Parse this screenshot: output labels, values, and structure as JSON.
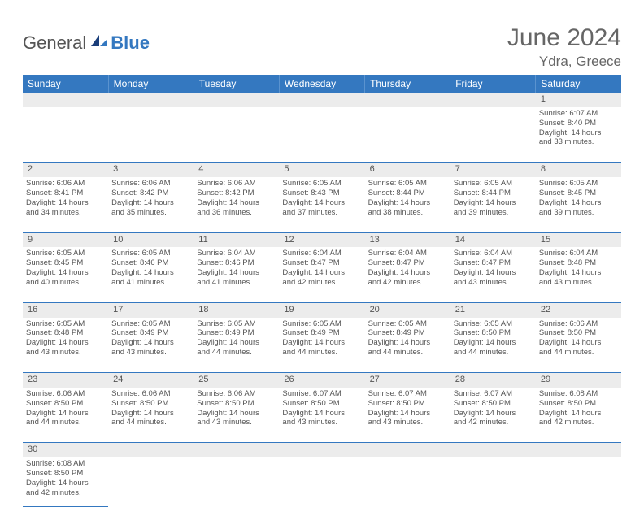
{
  "brand": {
    "general": "General",
    "blue": "Blue"
  },
  "title": "June 2024",
  "location": "Ydra, Greece",
  "colors": {
    "header_bg": "#3478c0",
    "header_text": "#ffffff",
    "daynum_bg": "#ececec",
    "border": "#3478c0",
    "text": "#555555",
    "brand_blue": "#3478c0",
    "brand_gray": "#555555"
  },
  "weekdays": [
    "Sunday",
    "Monday",
    "Tuesday",
    "Wednesday",
    "Thursday",
    "Friday",
    "Saturday"
  ],
  "weeks": [
    {
      "nums": [
        "",
        "",
        "",
        "",
        "",
        "",
        "1"
      ],
      "cells": [
        null,
        null,
        null,
        null,
        null,
        null,
        {
          "sr": "Sunrise: 6:07 AM",
          "ss": "Sunset: 8:40 PM",
          "d1": "Daylight: 14 hours",
          "d2": "and 33 minutes."
        }
      ]
    },
    {
      "nums": [
        "2",
        "3",
        "4",
        "5",
        "6",
        "7",
        "8"
      ],
      "cells": [
        {
          "sr": "Sunrise: 6:06 AM",
          "ss": "Sunset: 8:41 PM",
          "d1": "Daylight: 14 hours",
          "d2": "and 34 minutes."
        },
        {
          "sr": "Sunrise: 6:06 AM",
          "ss": "Sunset: 8:42 PM",
          "d1": "Daylight: 14 hours",
          "d2": "and 35 minutes."
        },
        {
          "sr": "Sunrise: 6:06 AM",
          "ss": "Sunset: 8:42 PM",
          "d1": "Daylight: 14 hours",
          "d2": "and 36 minutes."
        },
        {
          "sr": "Sunrise: 6:05 AM",
          "ss": "Sunset: 8:43 PM",
          "d1": "Daylight: 14 hours",
          "d2": "and 37 minutes."
        },
        {
          "sr": "Sunrise: 6:05 AM",
          "ss": "Sunset: 8:44 PM",
          "d1": "Daylight: 14 hours",
          "d2": "and 38 minutes."
        },
        {
          "sr": "Sunrise: 6:05 AM",
          "ss": "Sunset: 8:44 PM",
          "d1": "Daylight: 14 hours",
          "d2": "and 39 minutes."
        },
        {
          "sr": "Sunrise: 6:05 AM",
          "ss": "Sunset: 8:45 PM",
          "d1": "Daylight: 14 hours",
          "d2": "and 39 minutes."
        }
      ]
    },
    {
      "nums": [
        "9",
        "10",
        "11",
        "12",
        "13",
        "14",
        "15"
      ],
      "cells": [
        {
          "sr": "Sunrise: 6:05 AM",
          "ss": "Sunset: 8:45 PM",
          "d1": "Daylight: 14 hours",
          "d2": "and 40 minutes."
        },
        {
          "sr": "Sunrise: 6:05 AM",
          "ss": "Sunset: 8:46 PM",
          "d1": "Daylight: 14 hours",
          "d2": "and 41 minutes."
        },
        {
          "sr": "Sunrise: 6:04 AM",
          "ss": "Sunset: 8:46 PM",
          "d1": "Daylight: 14 hours",
          "d2": "and 41 minutes."
        },
        {
          "sr": "Sunrise: 6:04 AM",
          "ss": "Sunset: 8:47 PM",
          "d1": "Daylight: 14 hours",
          "d2": "and 42 minutes."
        },
        {
          "sr": "Sunrise: 6:04 AM",
          "ss": "Sunset: 8:47 PM",
          "d1": "Daylight: 14 hours",
          "d2": "and 42 minutes."
        },
        {
          "sr": "Sunrise: 6:04 AM",
          "ss": "Sunset: 8:47 PM",
          "d1": "Daylight: 14 hours",
          "d2": "and 43 minutes."
        },
        {
          "sr": "Sunrise: 6:04 AM",
          "ss": "Sunset: 8:48 PM",
          "d1": "Daylight: 14 hours",
          "d2": "and 43 minutes."
        }
      ]
    },
    {
      "nums": [
        "16",
        "17",
        "18",
        "19",
        "20",
        "21",
        "22"
      ],
      "cells": [
        {
          "sr": "Sunrise: 6:05 AM",
          "ss": "Sunset: 8:48 PM",
          "d1": "Daylight: 14 hours",
          "d2": "and 43 minutes."
        },
        {
          "sr": "Sunrise: 6:05 AM",
          "ss": "Sunset: 8:49 PM",
          "d1": "Daylight: 14 hours",
          "d2": "and 43 minutes."
        },
        {
          "sr": "Sunrise: 6:05 AM",
          "ss": "Sunset: 8:49 PM",
          "d1": "Daylight: 14 hours",
          "d2": "and 44 minutes."
        },
        {
          "sr": "Sunrise: 6:05 AM",
          "ss": "Sunset: 8:49 PM",
          "d1": "Daylight: 14 hours",
          "d2": "and 44 minutes."
        },
        {
          "sr": "Sunrise: 6:05 AM",
          "ss": "Sunset: 8:49 PM",
          "d1": "Daylight: 14 hours",
          "d2": "and 44 minutes."
        },
        {
          "sr": "Sunrise: 6:05 AM",
          "ss": "Sunset: 8:50 PM",
          "d1": "Daylight: 14 hours",
          "d2": "and 44 minutes."
        },
        {
          "sr": "Sunrise: 6:06 AM",
          "ss": "Sunset: 8:50 PM",
          "d1": "Daylight: 14 hours",
          "d2": "and 44 minutes."
        }
      ]
    },
    {
      "nums": [
        "23",
        "24",
        "25",
        "26",
        "27",
        "28",
        "29"
      ],
      "cells": [
        {
          "sr": "Sunrise: 6:06 AM",
          "ss": "Sunset: 8:50 PM",
          "d1": "Daylight: 14 hours",
          "d2": "and 44 minutes."
        },
        {
          "sr": "Sunrise: 6:06 AM",
          "ss": "Sunset: 8:50 PM",
          "d1": "Daylight: 14 hours",
          "d2": "and 44 minutes."
        },
        {
          "sr": "Sunrise: 6:06 AM",
          "ss": "Sunset: 8:50 PM",
          "d1": "Daylight: 14 hours",
          "d2": "and 43 minutes."
        },
        {
          "sr": "Sunrise: 6:07 AM",
          "ss": "Sunset: 8:50 PM",
          "d1": "Daylight: 14 hours",
          "d2": "and 43 minutes."
        },
        {
          "sr": "Sunrise: 6:07 AM",
          "ss": "Sunset: 8:50 PM",
          "d1": "Daylight: 14 hours",
          "d2": "and 43 minutes."
        },
        {
          "sr": "Sunrise: 6:07 AM",
          "ss": "Sunset: 8:50 PM",
          "d1": "Daylight: 14 hours",
          "d2": "and 42 minutes."
        },
        {
          "sr": "Sunrise: 6:08 AM",
          "ss": "Sunset: 8:50 PM",
          "d1": "Daylight: 14 hours",
          "d2": "and 42 minutes."
        }
      ]
    },
    {
      "nums": [
        "30",
        "",
        "",
        "",
        "",
        "",
        ""
      ],
      "cells": [
        {
          "sr": "Sunrise: 6:08 AM",
          "ss": "Sunset: 8:50 PM",
          "d1": "Daylight: 14 hours",
          "d2": "and 42 minutes."
        },
        null,
        null,
        null,
        null,
        null,
        null
      ]
    }
  ]
}
